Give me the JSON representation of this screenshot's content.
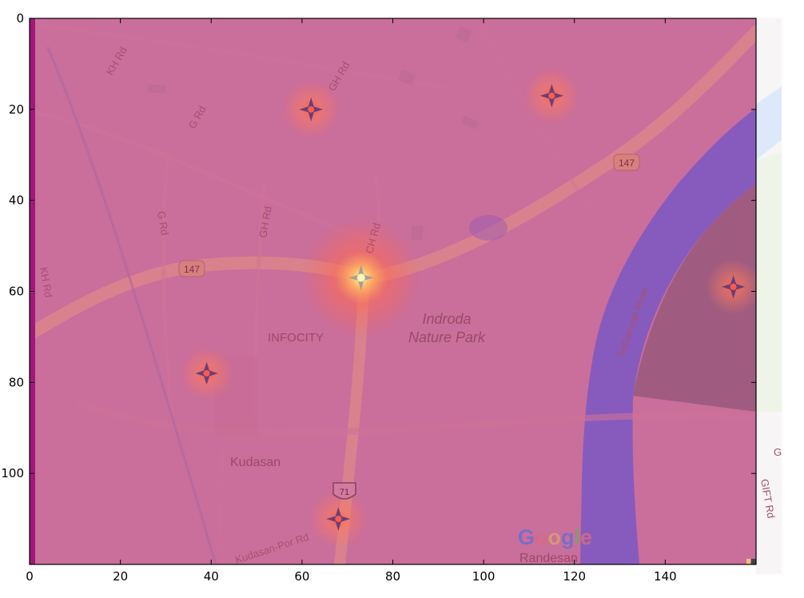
{
  "chart_data": {
    "type": "heatmap",
    "title": "",
    "xlabel": "",
    "ylabel": "",
    "xlim": [
      0,
      160
    ],
    "ylim": [
      120,
      0
    ],
    "xticks": [
      0,
      20,
      40,
      60,
      80,
      100,
      120,
      140
    ],
    "yticks": [
      0,
      20,
      40,
      60,
      80,
      100
    ],
    "grid": false,
    "background": "map",
    "hotspots": [
      {
        "x": 73,
        "y": 57,
        "intensity": 1.0
      },
      {
        "x": 62,
        "y": 20,
        "intensity": 0.75
      },
      {
        "x": 115,
        "y": 17,
        "intensity": 0.7
      },
      {
        "x": 155,
        "y": 59,
        "intensity": 0.65
      },
      {
        "x": 39,
        "y": 78,
        "intensity": 0.55
      },
      {
        "x": 68,
        "y": 110,
        "intensity": 0.75
      }
    ],
    "colors": {
      "base": "#c7679a",
      "river": "#7b58c4",
      "hot": "#ff5a4a",
      "peak": "#ffe36e"
    }
  },
  "map_labels": {
    "kh_rd_top": "KH Rd",
    "gh_rd_top": "GH Rd",
    "g_rd_top": "G Rd",
    "g_rd_mid": "G Rd",
    "gh_rd_mid": "GH Rd",
    "ch_rd": "CH Rd",
    "kh_rd_left": "KH Rd",
    "shield_147_left": "147",
    "shield_147_right": "147",
    "shield_71": "71",
    "infocity": "INFOCITY",
    "indroda_1": "Indroda",
    "indroda_2": "Nature Park",
    "sabarmati": "Sabarmati River",
    "kudasan": "Kudasan",
    "kudasan_por": "Kudasan-Por Rd",
    "randesan": "Randesan",
    "gift_rd": "GIFT Rd",
    "edge_g": "G",
    "google": [
      "G",
      "o",
      "o",
      "g",
      "l",
      "e"
    ]
  }
}
